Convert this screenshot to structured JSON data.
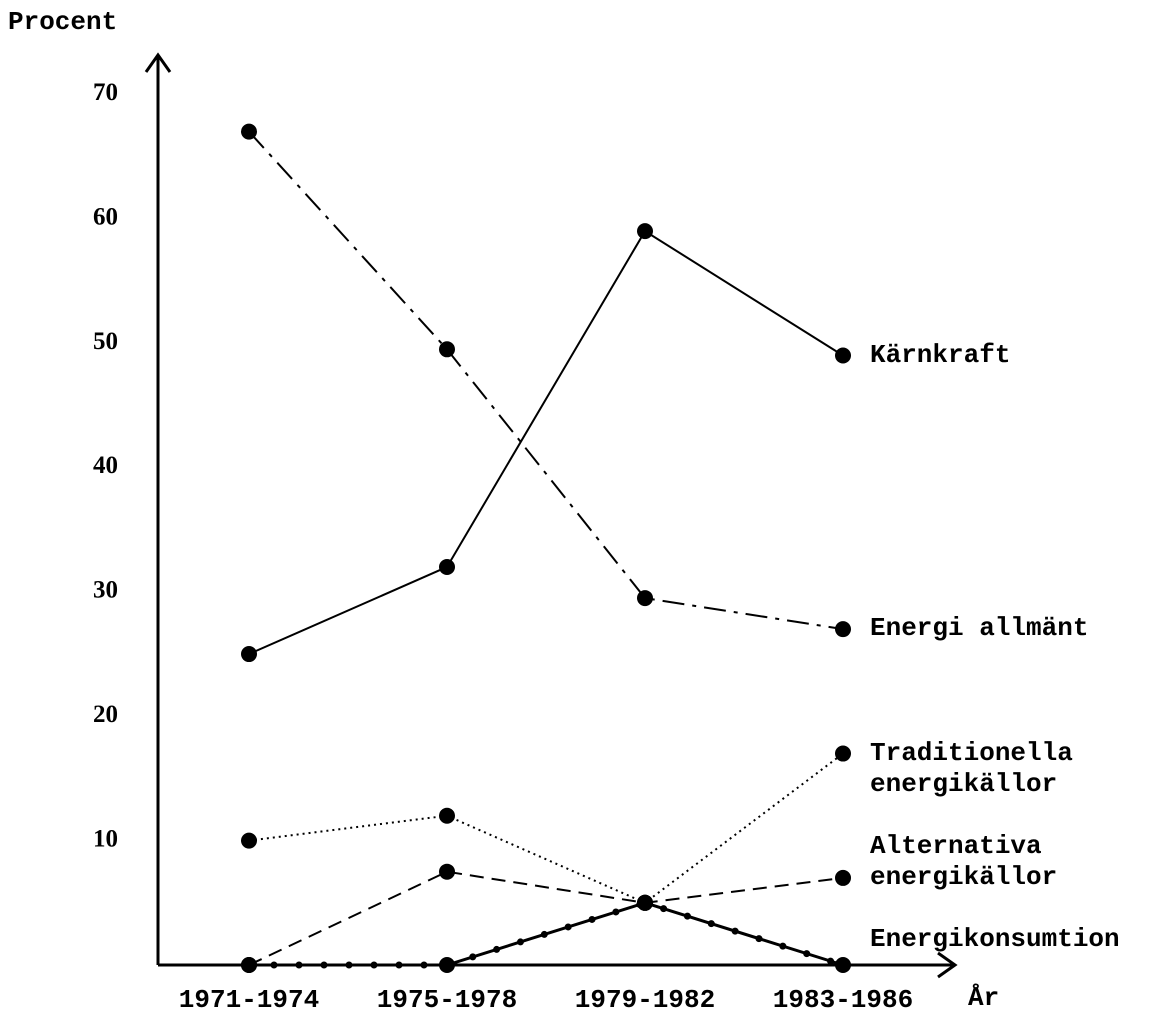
{
  "chart_data": {
    "type": "line",
    "y_label": "Procent",
    "x_label": "År",
    "categories": [
      "1971-1974",
      "1975-1978",
      "1979-1982",
      "1983-1986"
    ],
    "series": [
      {
        "name": "Kärnkraft",
        "color": "#000000",
        "dash": "solid",
        "values": [
          25,
          32,
          59,
          49
        ]
      },
      {
        "name": "Energi allmänt",
        "color": "#000000",
        "dash": "dashdot",
        "values": [
          67,
          49.5,
          29.5,
          27
        ]
      },
      {
        "name": "Traditionella energikällor",
        "color": "#000000",
        "dash": "dotted",
        "values": [
          10,
          12,
          5,
          17
        ]
      },
      {
        "name": "Alternativa energikällor",
        "color": "#000000",
        "dash": "dashed",
        "values": [
          0,
          7.5,
          5,
          7
        ]
      },
      {
        "name": "Energikonsumtion",
        "color": "#000000",
        "dash": "dotted-solid",
        "values": [
          0,
          0,
          5,
          0
        ]
      }
    ],
    "ylim": [
      0,
      73
    ],
    "yticks": [
      10,
      20,
      30,
      40,
      50,
      60,
      70
    ],
    "grid": false
  }
}
